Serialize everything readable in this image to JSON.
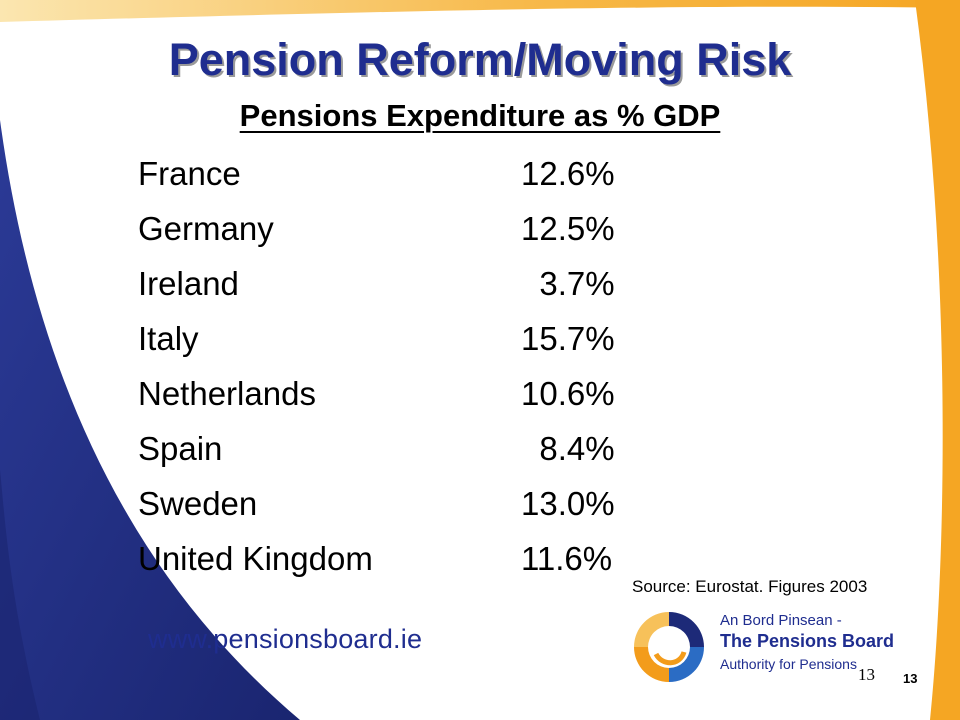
{
  "slide": {
    "title": "Pension Reform/Moving Risk",
    "subtitle": "Pensions Expenditure as % GDP"
  },
  "table": {
    "rows": [
      {
        "country": "France",
        "value": "12.6%"
      },
      {
        "country": "Germany",
        "value": "12.5%"
      },
      {
        "country": "Ireland",
        "value": "  3.7%"
      },
      {
        "country": "Italy",
        "value": "15.7%"
      },
      {
        "country": "Netherlands",
        "value": "10.6%"
      },
      {
        "country": "Spain",
        "value": "  8.4%"
      },
      {
        "country": "Sweden",
        "value": "13.0%"
      },
      {
        "country": "United Kingdom",
        "value": "11.6%"
      }
    ]
  },
  "source": "Source: Eurostat. Figures 2003",
  "footer": {
    "website": "www.pensionsboard.ie",
    "logo_line1": "An Bord Pinsean -",
    "logo_line2": "The Pensions Board",
    "logo_line3": "Authority for Pensions",
    "page_number_serif": "13",
    "page_number_bold": "13"
  },
  "colors": {
    "title_blue": "#1f2d8f",
    "navy_swoosh": "#1d2a78",
    "orange_swoosh": "#f5a623",
    "logo_orange": "#f39c1b"
  }
}
